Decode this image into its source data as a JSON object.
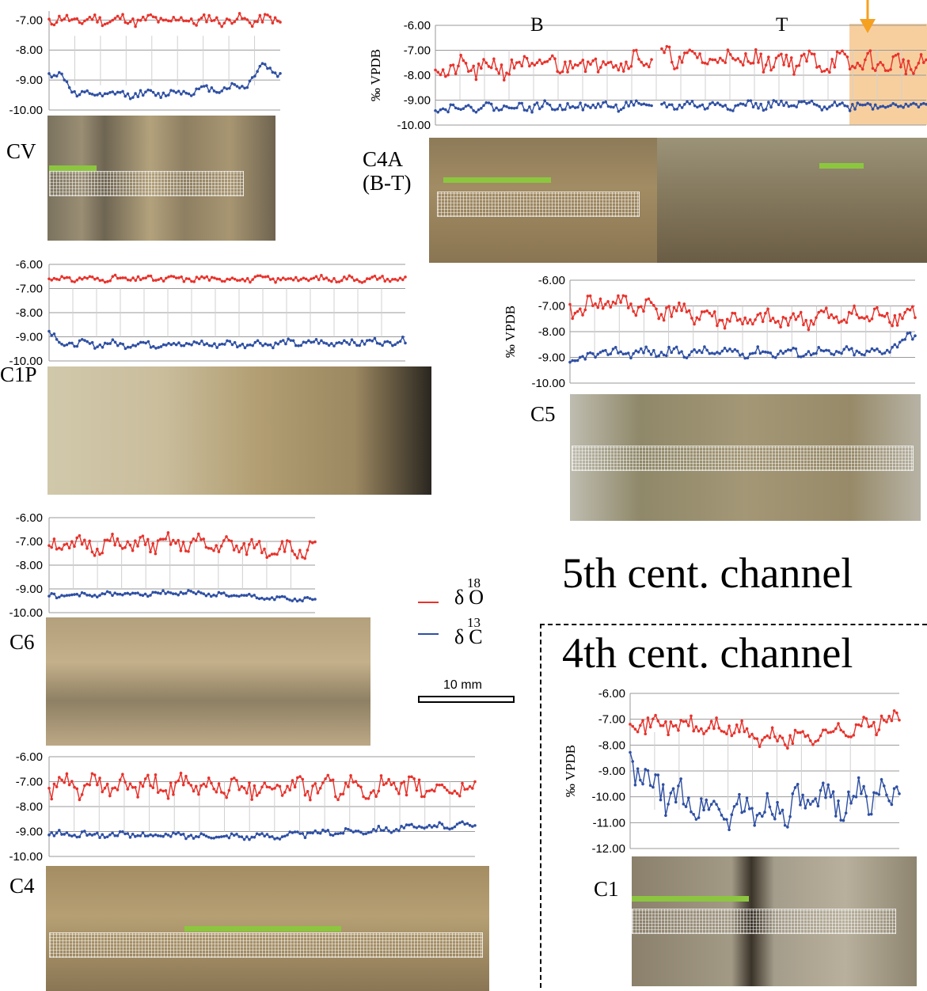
{
  "colors": {
    "d18O": "#e8322b",
    "d13C": "#2e4fa3",
    "highlight": "#f7cf9f",
    "arrow": "#f5a01f",
    "scale_green": "#8cc63f"
  },
  "labels": {
    "channel5": "5th cent. channel",
    "channel4": "4th cent. channel",
    "legend_o": "δ",
    "legend_o_sup": "18",
    "legend_o_el": "O",
    "legend_c": "δ",
    "legend_c_sup": "13",
    "legend_c_el": "C",
    "scale": "10 mm"
  },
  "chart_data": [
    {
      "id": "CV",
      "type": "line",
      "sample": "CV",
      "ylabel": "",
      "yticks": [
        "-7.00",
        "-8.00",
        "-9.00",
        "-10.00"
      ],
      "ylim": [
        -10,
        -6.7
      ],
      "x_range": [
        0,
        100
      ],
      "series": [
        {
          "name": "δ18O",
          "seed": 11,
          "points": [
            [
              0,
              -7.0
            ],
            [
              50,
              -7.0
            ],
            [
              100,
              -7.0
            ]
          ],
          "noise": 0.15
        },
        {
          "name": "δ13C",
          "seed": 12,
          "points": [
            [
              0,
              -8.8
            ],
            [
              6,
              -8.9
            ],
            [
              12,
              -9.5
            ],
            [
              50,
              -9.45
            ],
            [
              85,
              -9.2
            ],
            [
              92,
              -8.5
            ],
            [
              100,
              -8.8
            ]
          ],
          "noise": 0.1
        }
      ]
    },
    {
      "id": "C4A",
      "type": "line",
      "sample": "C4A\n(B-T)",
      "ylabel": "‰ VPDB",
      "yticks": [
        "-6.00",
        "-7.00",
        "-8.00",
        "-9.00",
        "-10.00"
      ],
      "ylim": [
        -10,
        -6
      ],
      "annotations": [
        "B",
        "T"
      ],
      "series": [
        {
          "name": "δ18O",
          "seed": 21,
          "points": [
            [
              0,
              -7.8
            ],
            [
              50,
              -7.3
            ],
            [
              100,
              -7.6
            ]
          ],
          "noise": 0.35
        },
        {
          "name": "δ13C",
          "seed": 22,
          "points": [
            [
              0,
              -9.3
            ],
            [
              50,
              -9.2
            ],
            [
              100,
              -9.2
            ]
          ],
          "noise": 0.15
        }
      ]
    },
    {
      "id": "C1P",
      "type": "line",
      "sample": "C1P",
      "ylabel": "",
      "yticks": [
        "-6.00",
        "-7.00",
        "-8.00",
        "-9.00",
        "-10.00"
      ],
      "ylim": [
        -10,
        -6
      ],
      "series": [
        {
          "name": "δ18O",
          "seed": 31,
          "points": [
            [
              0,
              -6.6
            ],
            [
              50,
              -6.6
            ],
            [
              100,
              -6.6
            ]
          ],
          "noise": 0.1
        },
        {
          "name": "δ13C",
          "seed": 32,
          "points": [
            [
              0,
              -8.8
            ],
            [
              4,
              -9.3
            ],
            [
              50,
              -9.3
            ],
            [
              100,
              -9.2
            ]
          ],
          "noise": 0.12
        }
      ]
    },
    {
      "id": "C5",
      "type": "line",
      "sample": "C5",
      "ylabel": "‰ VPDB",
      "yticks": [
        "-6.00",
        "-7.00",
        "-8.00",
        "-9.00",
        "-10.00"
      ],
      "ylim": [
        -10,
        -6
      ],
      "series": [
        {
          "name": "δ18O",
          "seed": 41,
          "points": [
            [
              0,
              -7.2
            ],
            [
              10,
              -6.8
            ],
            [
              50,
              -7.6
            ],
            [
              100,
              -7.3
            ]
          ],
          "noise": 0.3
        },
        {
          "name": "δ13C",
          "seed": 42,
          "points": [
            [
              0,
              -9.2
            ],
            [
              10,
              -8.8
            ],
            [
              50,
              -8.8
            ],
            [
              90,
              -8.8
            ],
            [
              100,
              -8.1
            ]
          ],
          "noise": 0.15
        }
      ]
    },
    {
      "id": "C6",
      "type": "line",
      "sample": "C6",
      "ylabel": "",
      "yticks": [
        "-6.00",
        "-7.00",
        "-8.00",
        "-9.00",
        "-10.00"
      ],
      "ylim": [
        -10,
        -6
      ],
      "series": [
        {
          "name": "δ18O",
          "seed": 51,
          "points": [
            [
              0,
              -7.2
            ],
            [
              50,
              -7.1
            ],
            [
              100,
              -7.4
            ]
          ],
          "noise": 0.3
        },
        {
          "name": "δ13C",
          "seed": 52,
          "points": [
            [
              0,
              -9.3
            ],
            [
              50,
              -9.15
            ],
            [
              100,
              -9.5
            ]
          ],
          "noise": 0.08
        }
      ]
    },
    {
      "id": "C4",
      "type": "line",
      "sample": "C4",
      "ylabel": "",
      "yticks": [
        "-6.00",
        "-7.00",
        "-8.00",
        "-9.00",
        "-10.00"
      ],
      "ylim": [
        -10,
        -6
      ],
      "series": [
        {
          "name": "δ18O",
          "seed": 61,
          "points": [
            [
              0,
              -7.2
            ],
            [
              50,
              -7.2
            ],
            [
              100,
              -7.3
            ]
          ],
          "noise": 0.35
        },
        {
          "name": "δ13C",
          "seed": 62,
          "points": [
            [
              0,
              -9.1
            ],
            [
              50,
              -9.2
            ],
            [
              100,
              -8.7
            ]
          ],
          "noise": 0.1
        }
      ]
    },
    {
      "id": "C1",
      "type": "line",
      "sample": "C1",
      "ylabel": "‰ VPDB",
      "yticks": [
        "-6.00",
        "-7.00",
        "-8.00",
        "-9.00",
        "-10.00",
        "-11.00",
        "-12.00"
      ],
      "ylim": [
        -12,
        -6
      ],
      "series": [
        {
          "name": "δ18O",
          "seed": 71,
          "points": [
            [
              0,
              -7.1
            ],
            [
              40,
              -7.4
            ],
            [
              50,
              -7.8
            ],
            [
              70,
              -7.6
            ],
            [
              100,
              -7.0
            ]
          ],
          "noise": 0.3
        },
        {
          "name": "δ13C",
          "seed": 72,
          "points": [
            [
              0,
              -8.8
            ],
            [
              10,
              -9.8
            ],
            [
              35,
              -10.6
            ],
            [
              60,
              -10.4
            ],
            [
              100,
              -9.8
            ]
          ],
          "noise": 0.55
        }
      ]
    }
  ]
}
